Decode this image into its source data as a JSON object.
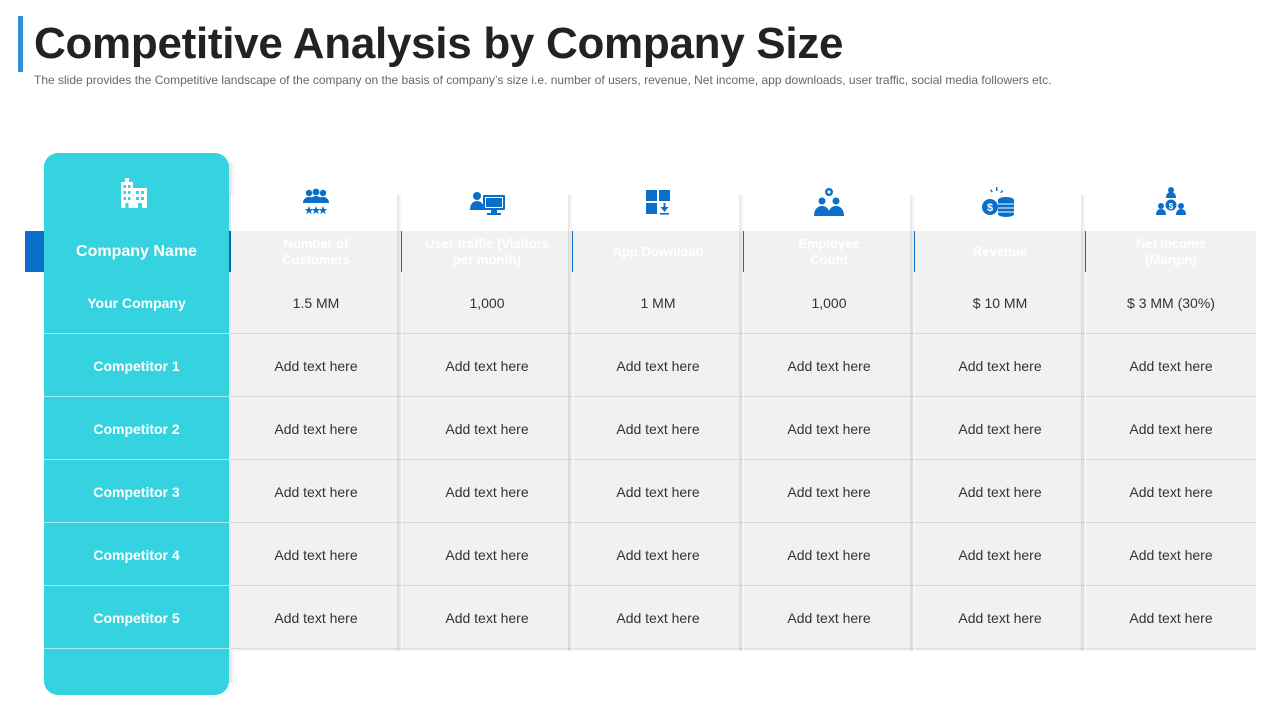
{
  "title": "Competitive Analysis by Company Size",
  "subtitle": "The slide provides  the Competitive  landscape of the company on the basis of company’s size i.e. number of users, revenue,  Net income,  app downloads,  user traffic,  social media followers  etc.",
  "colors": {
    "accent_blue": "#0a6fca",
    "teal": "#35d3df",
    "title_bar": "#2f8fd8"
  },
  "company_header": {
    "label": "Company Name",
    "icon": "building-icon"
  },
  "columns": [
    {
      "label": "Number of\nCustomers",
      "icon": "users-stars-icon"
    },
    {
      "label": "User traffic (Visitors\nper month)",
      "icon": "user-monitor-icon"
    },
    {
      "label": "App Download",
      "icon": "app-download-icon"
    },
    {
      "label": "Employee\nCount",
      "icon": "employees-gear-icon"
    },
    {
      "label": "Revenue",
      "icon": "coins-icon"
    },
    {
      "label": "Net Income\n(Margin)",
      "icon": "net-income-icon"
    }
  ],
  "rows": [
    {
      "name": "Your Company",
      "cells": [
        "1.5 MM",
        "1,000",
        "1 MM",
        "1,000",
        "$ 10 MM",
        "$ 3 MM  (30%)"
      ]
    },
    {
      "name": "Competitor 1",
      "cells": [
        "Add text here",
        "Add text here",
        "Add text here",
        "Add text here",
        "Add text here",
        "Add text here"
      ]
    },
    {
      "name": "Competitor 2",
      "cells": [
        "Add text here",
        "Add text here",
        "Add text here",
        "Add text here",
        "Add text here",
        "Add text here"
      ]
    },
    {
      "name": "Competitor 3",
      "cells": [
        "Add text here",
        "Add text here",
        "Add text here",
        "Add text here",
        "Add text here",
        "Add text here"
      ]
    },
    {
      "name": "Competitor 4",
      "cells": [
        "Add text here",
        "Add text here",
        "Add text here",
        "Add text here",
        "Add text here",
        "Add text here"
      ]
    },
    {
      "name": "Competitor 5",
      "cells": [
        "Add text here",
        "Add text here",
        "Add text here",
        "Add text here",
        "Add text here",
        "Add text here"
      ]
    }
  ]
}
